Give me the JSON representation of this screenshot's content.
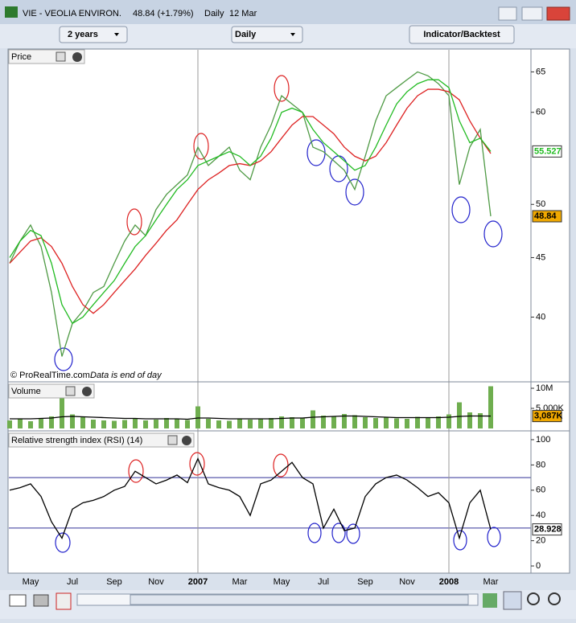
{
  "window": {
    "symbol": "VIE - VEOLIA ENVIRON.",
    "quote": "48.84 (+1.79%)",
    "period": "Daily",
    "date": "12 Mar"
  },
  "toolbar": {
    "range": "2 years",
    "interval": "Daily",
    "button": "Indicator/Backtest"
  },
  "chart_data": [
    {
      "type": "line",
      "title": "Price",
      "log": true,
      "ylim": [
        35.3,
        67.9
      ],
      "yticks": [
        40,
        45,
        50,
        60,
        65
      ],
      "copyright": "© ProRealTime.com",
      "note": "Data is end of day",
      "series": [
        {
          "color": "#4f9a45",
          "values": [
            44.5,
            46.5,
            48,
            46,
            42,
            37,
            39.5,
            40.5,
            42,
            42.5,
            44.5,
            46.5,
            48,
            47,
            49.5,
            51,
            52,
            53,
            56,
            54,
            55,
            56,
            53.5,
            52.5,
            56,
            58.5,
            62,
            61,
            60,
            56,
            55.5,
            54.5,
            53.5,
            51.5,
            55,
            59,
            62,
            63,
            64,
            65,
            64.5,
            63.5,
            62,
            52,
            56,
            58,
            48.84
          ]
        },
        {
          "color": "#dd2222",
          "values": [
            44.5,
            45.5,
            46.5,
            46.8,
            46,
            44.5,
            42.5,
            41,
            40.3,
            41,
            42,
            43,
            44,
            45.2,
            46.3,
            47.5,
            48.5,
            50,
            51.5,
            52.5,
            53.2,
            54,
            54.2,
            54,
            54.5,
            55.5,
            57,
            58.5,
            59.5,
            59.5,
            58.5,
            57.5,
            56,
            55,
            54.5,
            55,
            56.5,
            58.5,
            60.5,
            62,
            62.8,
            62.8,
            62.5,
            61.5,
            59,
            57,
            55.3
          ]
        },
        {
          "color": "#22bb22",
          "values": [
            45,
            46.5,
            47.5,
            47,
            44.5,
            41,
            39.5,
            40,
            41,
            42,
            43,
            44.5,
            46,
            47,
            48.5,
            50,
            51.5,
            52.5,
            54,
            54.5,
            55,
            55.5,
            55,
            54,
            55,
            57,
            60,
            60.5,
            60,
            58,
            56.5,
            55.5,
            54.5,
            53.5,
            54,
            56,
            58.5,
            61,
            62.5,
            63.5,
            64,
            64,
            63,
            59,
            56.5,
            57,
            55.527
          ]
        }
      ],
      "markers": [
        {
          "value": 55.527,
          "color": "#ffffff",
          "text_color": "#22bb22"
        },
        {
          "value": 48.84,
          "color": "#f0a800",
          "text_color": "#000000"
        }
      ]
    },
    {
      "type": "bar",
      "title": "Volume",
      "ylim": [
        0,
        11000000
      ],
      "yticks": [
        {
          "value": 10000000,
          "label": "10M"
        },
        {
          "value": 5000000,
          "label": "5,000K"
        }
      ],
      "series": [
        {
          "type": "bar",
          "color": "#6fae4f",
          "values": [
            2000000,
            2300000,
            1800000,
            2500000,
            3000000,
            7500000,
            3500000,
            2800000,
            2200000,
            2000000,
            1900000,
            2100000,
            2400000,
            2000000,
            2200000,
            2600000,
            2300000,
            2100000,
            5500000,
            2400000,
            2000000,
            1900000,
            2500000,
            2200000,
            2300000,
            2600000,
            3000000,
            2800000,
            2500000,
            4500000,
            3200000,
            3000000,
            3600000,
            3300000,
            2800000,
            2600000,
            2700000,
            2500000,
            2400000,
            2900000,
            2600000,
            3000000,
            3500000,
            6500000,
            4000000,
            3800000,
            10500000
          ]
        },
        {
          "type": "line",
          "color": "#000000",
          "values": [
            2400000,
            2400000,
            2400000,
            2500000,
            2600000,
            2900000,
            3000000,
            2900000,
            2800000,
            2700000,
            2600000,
            2500000,
            2500000,
            2400000,
            2400000,
            2400000,
            2400000,
            2300000,
            2600000,
            2600000,
            2500000,
            2400000,
            2400000,
            2400000,
            2400000,
            2400000,
            2500000,
            2600000,
            2600000,
            2800000,
            2900000,
            3000000,
            3100000,
            3100000,
            3000000,
            2900000,
            2800000,
            2700000,
            2700000,
            2700000,
            2700000,
            2700000,
            2800000,
            3000000,
            3100000,
            3100000,
            3087000
          ]
        }
      ],
      "markers": [
        {
          "value": 3087000,
          "label": "3,087K",
          "color": "#f0a800",
          "text_color": "#000000"
        }
      ]
    },
    {
      "type": "line",
      "title": "Relative strength index (RSI) (14)",
      "ylim": [
        -5.7,
        105.7
      ],
      "yticks": [
        0,
        20,
        40,
        60,
        80,
        100
      ],
      "levels": [
        70,
        30
      ],
      "categories": [
        null,
        null,
        "May",
        null,
        null,
        null,
        "Jul",
        null,
        null,
        null,
        "Sep",
        null,
        null,
        null,
        "Nov",
        null,
        null,
        null,
        "2007",
        null,
        null,
        null,
        "Mar",
        null,
        null,
        null,
        "May",
        null,
        null,
        null,
        "Jul",
        null,
        null,
        null,
        "Sep",
        null,
        null,
        null,
        "Nov",
        null,
        null,
        null,
        "2008",
        null,
        null,
        null,
        "Mar"
      ],
      "series": [
        {
          "color": "#000000",
          "values": [
            60,
            62,
            65,
            55,
            35,
            22,
            45,
            50,
            52,
            55,
            60,
            63,
            75,
            70,
            65,
            68,
            72,
            66,
            85,
            65,
            62,
            60,
            55,
            40,
            65,
            68,
            75,
            82,
            70,
            65,
            30,
            45,
            28,
            30,
            55,
            65,
            70,
            72,
            68,
            62,
            55,
            58,
            50,
            22,
            50,
            60,
            28.928
          ]
        }
      ],
      "markers": [
        {
          "value": 28.928,
          "color": "#ffffff",
          "text_color": "#000000"
        }
      ]
    }
  ]
}
